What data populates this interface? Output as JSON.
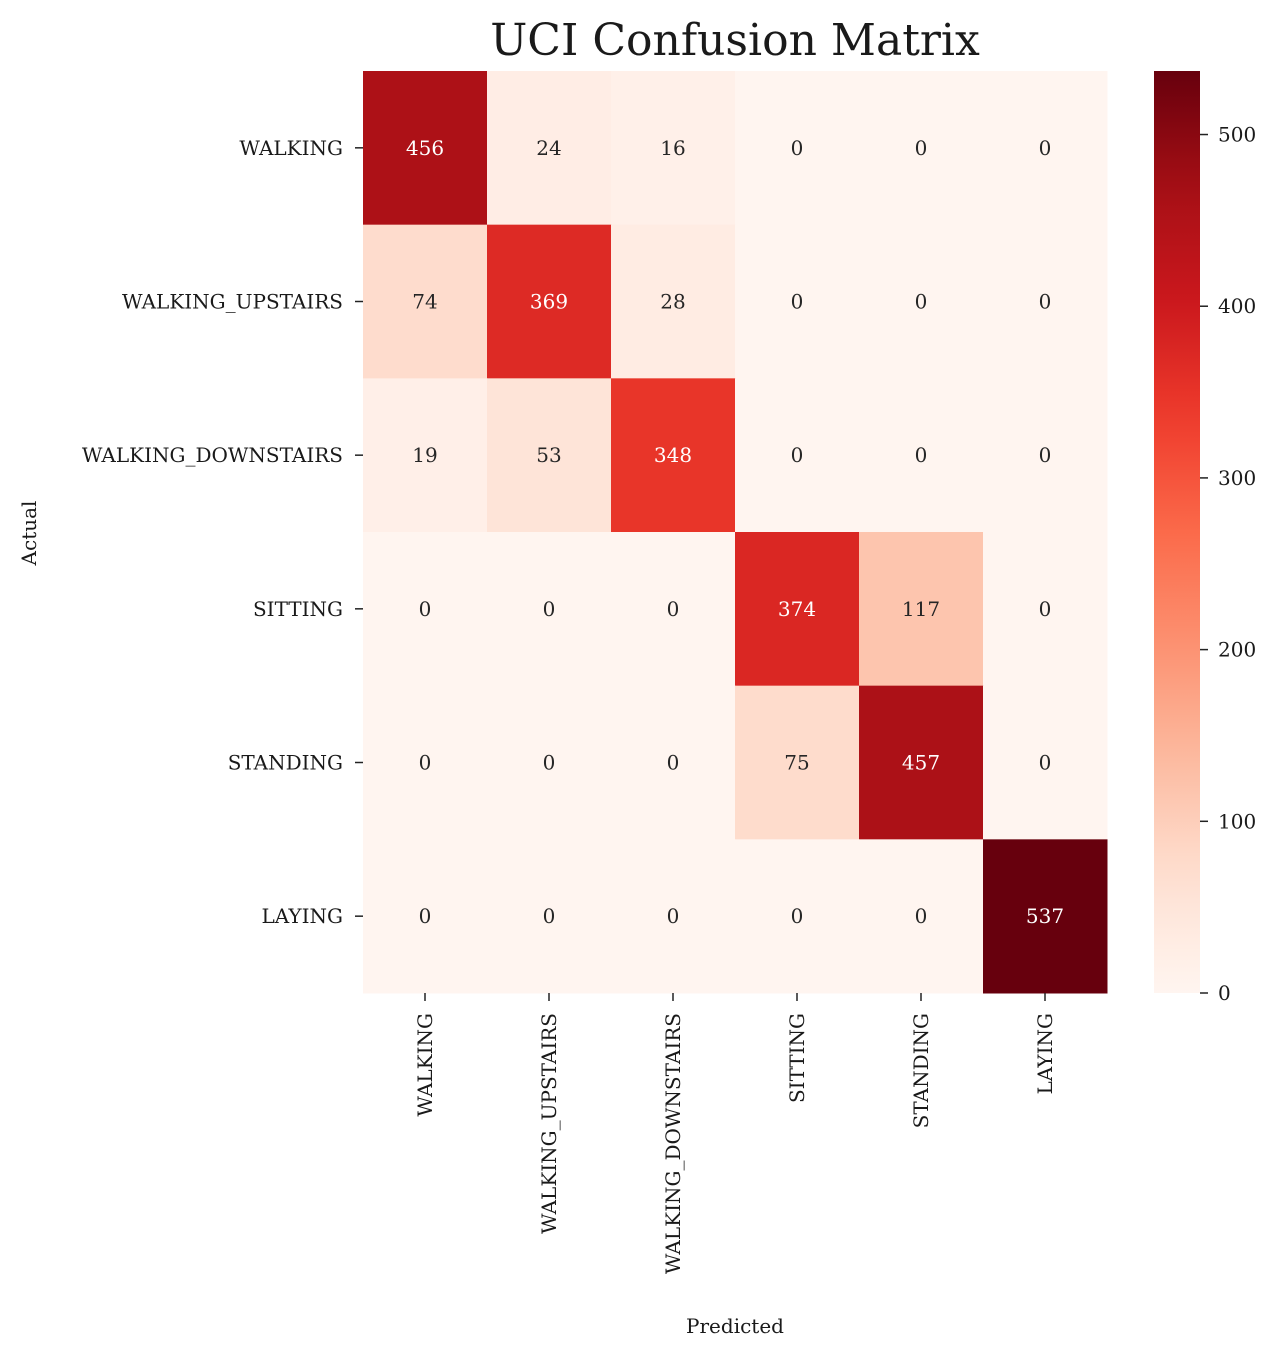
{
  "chart_data": {
    "type": "heatmap",
    "title": "UCI Confusion Matrix",
    "xlabel": "Predicted",
    "ylabel": "Actual",
    "x_categories": [
      "WALKING",
      "WALKING_UPSTAIRS",
      "WALKING_DOWNSTAIRS",
      "SITTING",
      "STANDING",
      "LAYING"
    ],
    "y_categories": [
      "WALKING",
      "WALKING_UPSTAIRS",
      "WALKING_DOWNSTAIRS",
      "SITTING",
      "STANDING",
      "LAYING"
    ],
    "values": [
      [
        456,
        24,
        16,
        0,
        0,
        0
      ],
      [
        74,
        369,
        28,
        0,
        0,
        0
      ],
      [
        19,
        53,
        348,
        0,
        0,
        0
      ],
      [
        0,
        0,
        0,
        374,
        117,
        0
      ],
      [
        0,
        0,
        0,
        75,
        457,
        0
      ],
      [
        0,
        0,
        0,
        0,
        0,
        537
      ]
    ],
    "colormap": "Reds",
    "vmin": 0,
    "vmax": 537,
    "colorbar_ticks": [
      0,
      100,
      200,
      300,
      400,
      500
    ],
    "colors": {
      "low": "#fff5f0",
      "high": "#67000d"
    }
  }
}
